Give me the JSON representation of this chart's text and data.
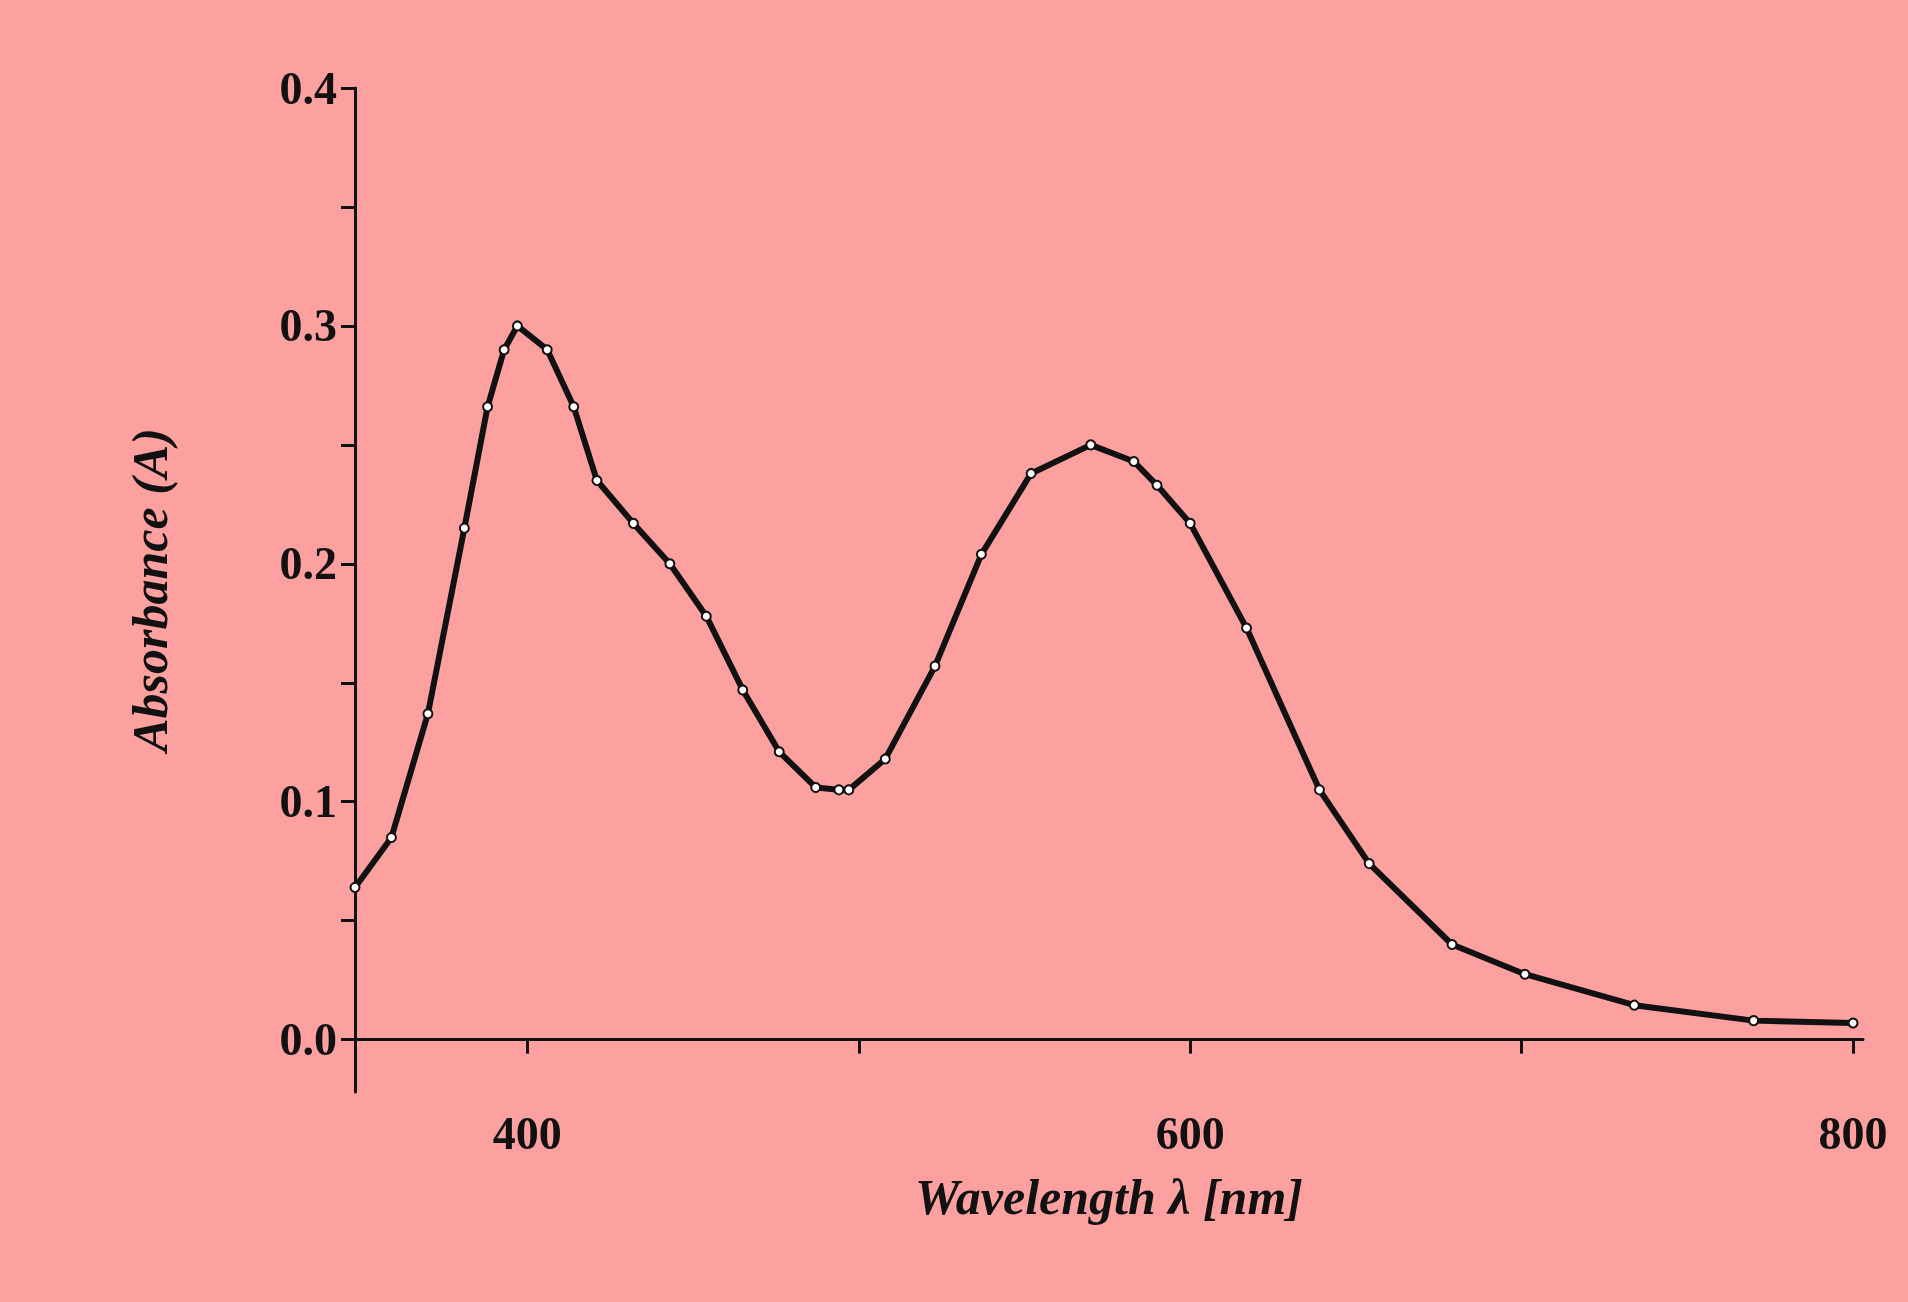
{
  "chart_data": {
    "type": "line",
    "xlabel": "Wavelength λ [nm]",
    "ylabel": "Absorbance (A)",
    "marker": "circle",
    "grid": false,
    "series": [
      {
        "color": "#111111",
        "x": [
          348,
          359,
          370,
          381,
          388,
          393,
          397,
          406,
          414,
          421,
          432,
          443,
          454,
          465,
          476,
          487,
          494,
          497,
          508,
          523,
          537,
          552,
          570,
          583,
          590,
          600,
          617,
          639,
          654,
          679,
          701,
          734,
          770,
          800
        ],
        "values": [
          0.064,
          0.085,
          0.137,
          0.215,
          0.266,
          0.29,
          0.3,
          0.29,
          0.266,
          0.235,
          0.217,
          0.2,
          0.178,
          0.147,
          0.121,
          0.106,
          0.105,
          0.105,
          0.118,
          0.157,
          0.204,
          0.238,
          0.25,
          0.243,
          0.233,
          0.217,
          0.173,
          0.105,
          0.074,
          0.04,
          0.0275,
          0.0145,
          0.008,
          0.007
        ]
      }
    ],
    "xlim": [
      348,
      803
    ],
    "xticks": [
      400,
      {
        "value": 500,
        "label": null
      },
      600,
      {
        "value": 700,
        "label": null
      },
      800
    ],
    "ylim": [
      -0.022,
      0.4
    ],
    "yticks": [
      {
        "value": 0,
        "label": "0.0"
      },
      {
        "value": 0.05,
        "label": null
      },
      {
        "value": 0.1,
        "label": "0.1"
      },
      {
        "value": 0.15,
        "label": null
      },
      {
        "value": 0.2,
        "label": "0.2"
      },
      {
        "value": 0.25,
        "label": null
      },
      {
        "value": 0.3,
        "label": "0.3"
      },
      {
        "value": 0.35,
        "label": null
      },
      {
        "value": 0.4,
        "label": "0.4"
      }
    ]
  }
}
